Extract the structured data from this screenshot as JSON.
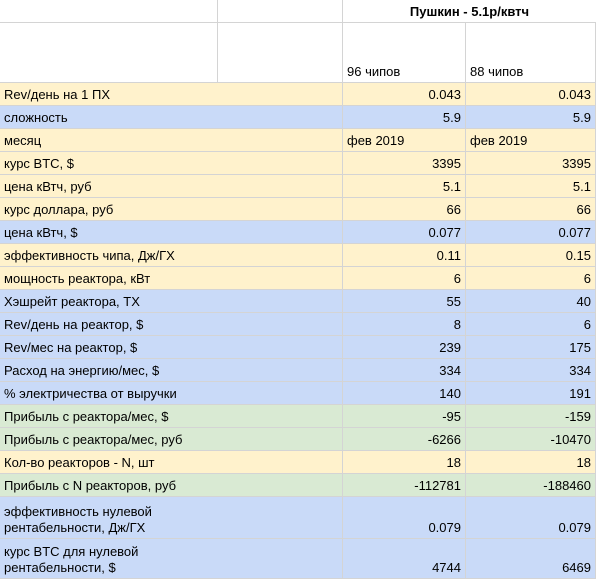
{
  "header": {
    "title": "Пушкин - 5.1р/квтч",
    "columns": [
      "96 чипов",
      "88 чипов"
    ]
  },
  "table": {
    "rows": [
      {
        "label": "Rev/день на 1 ПХ",
        "values": [
          0.043,
          0.043
        ],
        "color": "#fff2cc"
      },
      {
        "label": "сложность",
        "values": [
          5.9,
          5.9
        ],
        "color": "#c9daf8"
      },
      {
        "label": "месяц",
        "values": [
          "фев 2019",
          "фев 2019"
        ],
        "color": "#fff2cc"
      },
      {
        "label": "курс BTC, $",
        "values": [
          3395,
          3395
        ],
        "color": "#fff2cc"
      },
      {
        "label": "цена кВтч, руб",
        "values": [
          5.1,
          5.1
        ],
        "color": "#fff2cc"
      },
      {
        "label": "курс доллара, руб",
        "values": [
          66,
          66
        ],
        "color": "#fff2cc"
      },
      {
        "label": "цена кВтч, $",
        "values": [
          0.077,
          0.077
        ],
        "color": "#c9daf8"
      },
      {
        "label": "эффективность чипа, Дж/ГХ",
        "values": [
          0.11,
          0.15
        ],
        "color": "#fff2cc"
      },
      {
        "label": "мощность реактора, кВт",
        "values": [
          6,
          6
        ],
        "color": "#fff2cc"
      },
      {
        "label": "Хэшрейт реактора, ТХ",
        "values": [
          55,
          40
        ],
        "color": "#c9daf8"
      },
      {
        "label": "Rev/день на реактор, $",
        "values": [
          8,
          6
        ],
        "color": "#c9daf8"
      },
      {
        "label": "Rev/мес на реактор, $",
        "values": [
          239,
          175
        ],
        "color": "#c9daf8"
      },
      {
        "label": "Расход на энергию/мес, $",
        "values": [
          334,
          334
        ],
        "color": "#c9daf8"
      },
      {
        "label": "% электричества от выручки",
        "values": [
          140,
          191
        ],
        "color": "#c9daf8"
      },
      {
        "label": "Прибыль с реактора/мес, $",
        "values": [
          -95,
          -159
        ],
        "color": "#d9ead3"
      },
      {
        "label": "Прибыль с реактора/мес, руб",
        "values": [
          -6266,
          -10470
        ],
        "color": "#d9ead3"
      },
      {
        "label": "Кол-во реакторов - N, шт",
        "values": [
          18,
          18
        ],
        "color": "#fff2cc"
      },
      {
        "label": "Прибыль с N реакторов, руб",
        "values": [
          -112781,
          -188460
        ],
        "color": "#d9ead3"
      },
      {
        "label": "эффективность нулевой рентабельности, Дж/ГХ",
        "values": [
          0.079,
          0.079
        ],
        "color": "#c9daf8"
      },
      {
        "label": "курс BTC для нулевой рентабельности, $",
        "values": [
          4744,
          6469
        ],
        "color": "#c9daf8"
      }
    ]
  }
}
